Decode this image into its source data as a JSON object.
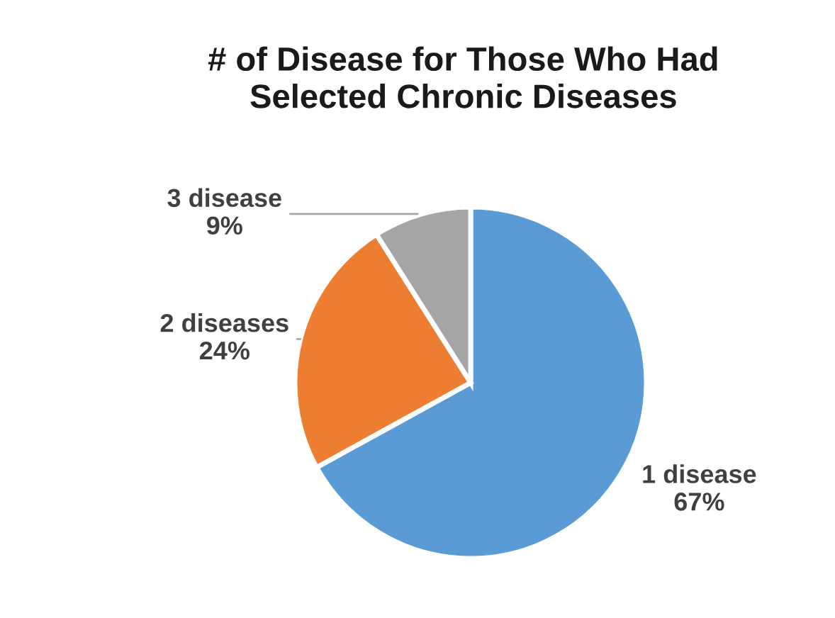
{
  "chart_data": {
    "type": "pie",
    "title": "# of Disease for Those Who Had Selected Chronic Diseases",
    "categories": [
      "1 disease",
      "2 diseases",
      "3 disease"
    ],
    "values": [
      67,
      24,
      9
    ],
    "colors": [
      "#5b9bd5",
      "#ed7d31",
      "#a5a5a5"
    ],
    "value_labels": [
      "67%",
      "24%",
      "9%"
    ],
    "legend": false
  }
}
